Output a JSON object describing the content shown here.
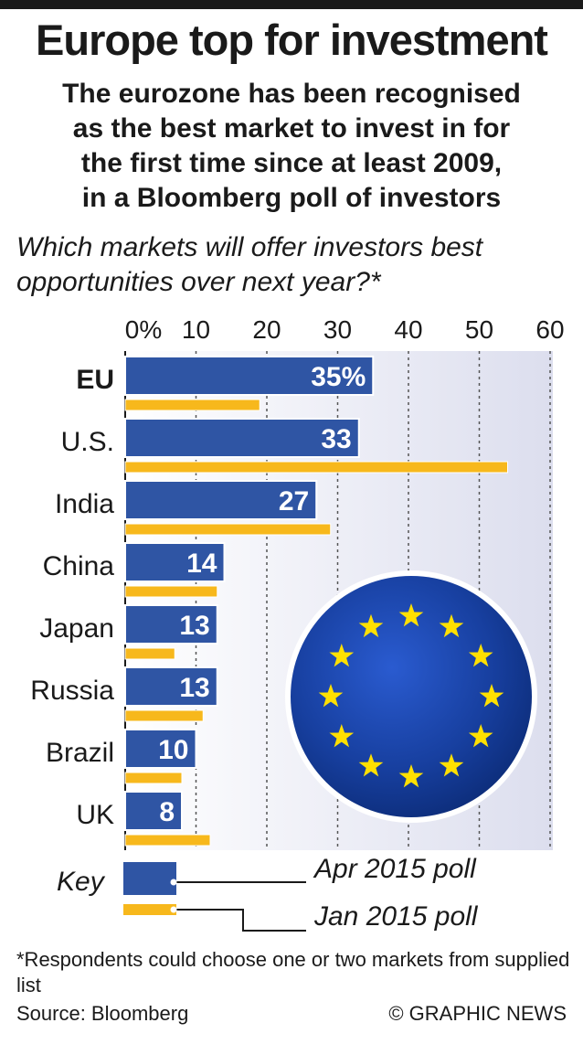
{
  "title": "Europe top for investment",
  "subtitle_lines": [
    "The eurozone has been recognised",
    "as the best market to invest in for",
    "the first time since at least 2009,",
    "in a Bloomberg poll of investors"
  ],
  "question_lines": [
    "Which markets will offer investors best",
    "opportunities over next year?*"
  ],
  "chart_data": {
    "type": "bar",
    "orientation": "horizontal",
    "xlim": [
      0,
      60
    ],
    "tick_labels": [
      "0%",
      "10",
      "20",
      "30",
      "40",
      "50",
      "60"
    ],
    "tick_values": [
      0,
      10,
      20,
      30,
      40,
      50,
      60
    ],
    "grid": true,
    "categories": [
      "EU",
      "U.S.",
      "India",
      "China",
      "Japan",
      "Russia",
      "Brazil",
      "UK"
    ],
    "series": [
      {
        "name": "Apr 2015 poll",
        "values": [
          35,
          33,
          27,
          14,
          13,
          13,
          10,
          8
        ],
        "labels": [
          "35%",
          "33",
          "27",
          "14",
          "13",
          "13",
          "10",
          "8"
        ]
      },
      {
        "name": "Jan 2015 poll",
        "values": [
          19,
          54,
          29,
          13,
          7,
          11,
          8,
          12
        ]
      }
    ]
  },
  "colors": {
    "apr": "#2f55a4",
    "jan": "#f7b81c",
    "flag": "#123a9c",
    "stars": "#ffe000",
    "grid_bg": "#e9eaf3"
  },
  "key": {
    "label": "Key",
    "apr_label": "Apr 2015 poll",
    "jan_label": "Jan 2015 poll"
  },
  "footnote": "*Respondents could choose one or two markets from supplied list",
  "source": "Source: Bloomberg",
  "credit": "© GRAPHIC NEWS"
}
